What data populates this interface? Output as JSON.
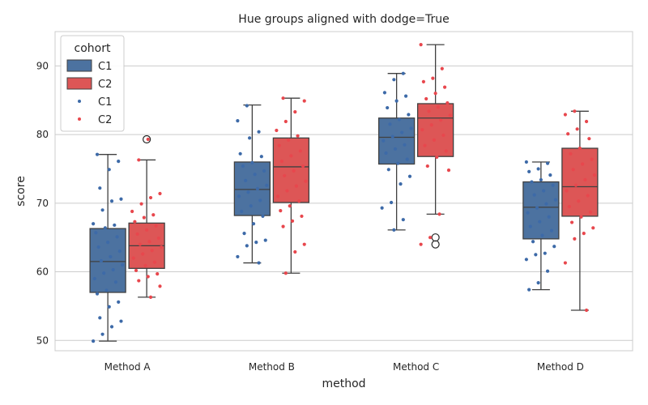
{
  "chart_data": {
    "type": "box",
    "title": "Hue groups aligned with dodge=True",
    "xlabel": "method",
    "ylabel": "score",
    "categories": [
      "Method A",
      "Method B",
      "Method C",
      "Method D"
    ],
    "yticks": [
      50,
      60,
      70,
      80,
      90
    ],
    "ylim": [
      48.5,
      95
    ],
    "grid": "horizontal",
    "legend": {
      "title": "cohort",
      "placement": "top-left",
      "entries": [
        {
          "label": "C1",
          "kind": "box"
        },
        {
          "label": "C2",
          "kind": "box"
        },
        {
          "label": "C1",
          "kind": "point"
        },
        {
          "label": "C2",
          "kind": "point"
        }
      ]
    },
    "colors": {
      "C1_box": "#4c72a0",
      "C2_box": "#dd5656",
      "C1_point": "#3d6aa8",
      "C2_point": "#e8474d",
      "grid": "#cccccc",
      "whisker": "#404040"
    },
    "series": [
      {
        "name": "C1",
        "boxes": [
          {
            "category": "Method A",
            "whislo": 49.9,
            "q1": 57.0,
            "median": 61.5,
            "q3": 66.3,
            "whishi": 77.1,
            "fliers": []
          },
          {
            "category": "Method B",
            "whislo": 61.3,
            "q1": 68.2,
            "median": 72.0,
            "q3": 76.0,
            "whishi": 84.3,
            "fliers": []
          },
          {
            "category": "Method C",
            "whislo": 66.1,
            "q1": 75.7,
            "median": 79.6,
            "q3": 82.4,
            "whishi": 88.9,
            "fliers": []
          },
          {
            "category": "Method D",
            "whislo": 57.4,
            "q1": 64.8,
            "median": 69.4,
            "q3": 73.1,
            "whishi": 76.0,
            "fliers": []
          }
        ],
        "points": [
          [
            49.9,
            50.9,
            52.0,
            52.8,
            53.3,
            54.9,
            55.6,
            56.8,
            57.3,
            58.5,
            59.0,
            59.8,
            60.3,
            61.0,
            61.6,
            62.2,
            63.0,
            63.6,
            64.3,
            65.1,
            65.7,
            66.4,
            66.8,
            67.0,
            69.0,
            70.3,
            70.6,
            72.2,
            74.9,
            76.1,
            77.1
          ],
          [
            61.3,
            62.2,
            63.8,
            64.3,
            64.6,
            65.6,
            67.0,
            68.1,
            68.8,
            69.6,
            70.4,
            71.0,
            71.6,
            72.1,
            72.6,
            73.3,
            74.2,
            74.7,
            75.4,
            75.9,
            76.8,
            77.2,
            79.5,
            80.4,
            82.0,
            84.2
          ],
          [
            66.1,
            67.6,
            69.3,
            70.1,
            72.8,
            73.9,
            74.9,
            75.8,
            76.4,
            77.3,
            77.9,
            78.5,
            79.1,
            79.7,
            80.3,
            80.9,
            81.5,
            82.2,
            82.9,
            83.9,
            84.9,
            85.6,
            86.1,
            88.0,
            88.9
          ],
          [
            57.4,
            58.4,
            60.1,
            61.8,
            62.5,
            62.7,
            63.7,
            64.4,
            65.3,
            66.0,
            66.6,
            67.3,
            68.0,
            68.6,
            69.3,
            69.9,
            70.5,
            71.2,
            71.8,
            72.6,
            73.1,
            73.4,
            74.1,
            74.6,
            75.0,
            75.8,
            76.0
          ]
        ]
      },
      {
        "name": "C2",
        "boxes": [
          {
            "category": "Method A",
            "whislo": 56.3,
            "q1": 60.5,
            "median": 63.8,
            "q3": 67.1,
            "whishi": 76.3,
            "fliers": [
              79.3
            ]
          },
          {
            "category": "Method B",
            "whislo": 59.8,
            "q1": 70.1,
            "median": 75.3,
            "q3": 79.5,
            "whishi": 85.3,
            "fliers": []
          },
          {
            "category": "Method C",
            "whislo": 68.4,
            "q1": 76.8,
            "median": 82.4,
            "q3": 84.5,
            "whishi": 93.1,
            "fliers": [
              64.0,
              65.0
            ]
          },
          {
            "category": "Method D",
            "whislo": 54.4,
            "q1": 68.1,
            "median": 72.4,
            "q3": 78.0,
            "whishi": 83.4,
            "fliers": []
          }
        ],
        "points": [
          [
            56.3,
            57.9,
            58.7,
            59.3,
            59.7,
            60.2,
            60.9,
            61.4,
            62.0,
            62.6,
            63.1,
            63.6,
            64.0,
            64.4,
            64.9,
            65.5,
            66.1,
            66.7,
            67.3,
            67.9,
            68.3,
            68.8,
            69.9,
            70.8,
            71.4,
            76.3,
            79.3
          ],
          [
            59.8,
            62.9,
            64.0,
            66.6,
            67.4,
            68.1,
            68.9,
            69.6,
            70.3,
            71.0,
            71.8,
            72.5,
            73.2,
            74.0,
            74.7,
            75.4,
            76.1,
            76.9,
            77.6,
            78.4,
            79.2,
            79.8,
            80.6,
            81.9,
            83.3,
            84.9,
            85.3
          ],
          [
            64.0,
            65.0,
            68.4,
            74.8,
            75.4,
            76.7,
            77.6,
            78.4,
            79.2,
            79.9,
            80.7,
            81.4,
            82.1,
            82.8,
            83.4,
            84.0,
            84.6,
            85.2,
            86.0,
            86.9,
            87.7,
            88.2,
            89.6,
            93.1
          ],
          [
            54.4,
            61.3,
            64.8,
            65.6,
            66.4,
            67.2,
            68.0,
            68.7,
            69.5,
            70.3,
            71.1,
            71.8,
            72.6,
            73.4,
            74.1,
            74.9,
            75.7,
            76.4,
            77.2,
            78.0,
            79.4,
            80.1,
            80.8,
            81.9,
            82.9,
            83.4
          ]
        ]
      }
    ]
  }
}
